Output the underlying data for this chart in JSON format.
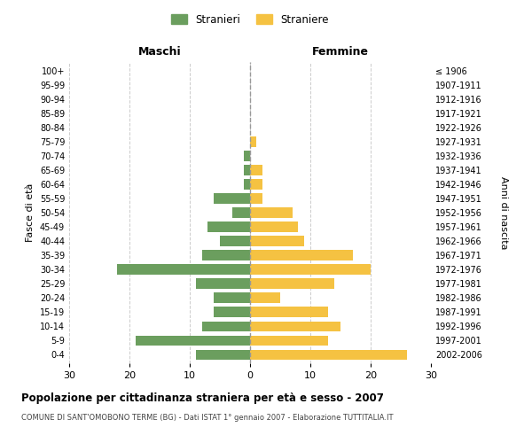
{
  "age_groups": [
    "0-4",
    "5-9",
    "10-14",
    "15-19",
    "20-24",
    "25-29",
    "30-34",
    "35-39",
    "40-44",
    "45-49",
    "50-54",
    "55-59",
    "60-64",
    "65-69",
    "70-74",
    "75-79",
    "80-84",
    "85-89",
    "90-94",
    "95-99",
    "100+"
  ],
  "birth_years": [
    "2002-2006",
    "1997-2001",
    "1992-1996",
    "1987-1991",
    "1982-1986",
    "1977-1981",
    "1972-1976",
    "1967-1971",
    "1962-1966",
    "1957-1961",
    "1952-1956",
    "1947-1951",
    "1942-1946",
    "1937-1941",
    "1932-1936",
    "1927-1931",
    "1922-1926",
    "1917-1921",
    "1912-1916",
    "1907-1911",
    "≤ 1906"
  ],
  "males": [
    9,
    19,
    8,
    6,
    6,
    9,
    22,
    8,
    5,
    7,
    3,
    6,
    1,
    1,
    1,
    0,
    0,
    0,
    0,
    0,
    0
  ],
  "females": [
    26,
    13,
    15,
    13,
    5,
    14,
    20,
    17,
    9,
    8,
    7,
    2,
    2,
    2,
    0,
    1,
    0,
    0,
    0,
    0,
    0
  ],
  "male_color": "#6b9e5e",
  "female_color": "#f5c242",
  "background_color": "#ffffff",
  "grid_color": "#cccccc",
  "title": "Popolazione per cittadinanza straniera per età e sesso - 2007",
  "subtitle": "COMUNE DI SANT'OMOBONO TERME (BG) - Dati ISTAT 1° gennaio 2007 - Elaborazione TUTTITALIA.IT",
  "ylabel_left": "Fasce di età",
  "ylabel_right": "Anni di nascita",
  "xlabel_left": "Maschi",
  "xlabel_right": "Femmine",
  "legend_male": "Stranieri",
  "legend_female": "Straniere",
  "xlim": 30
}
